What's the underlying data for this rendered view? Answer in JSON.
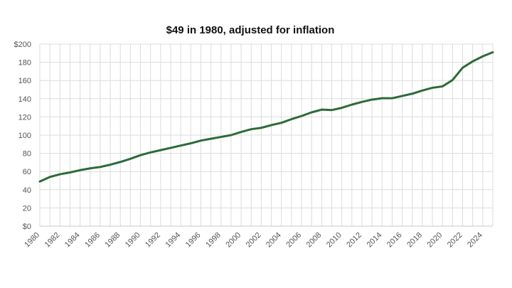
{
  "chart_data": {
    "type": "line",
    "title": "$49 in 1980, adjusted for inflation",
    "xlabel": "",
    "ylabel": "",
    "xlim": [
      1980,
      2025
    ],
    "ylim": [
      0,
      200
    ],
    "y_ticks": [
      0,
      20,
      40,
      60,
      80,
      100,
      120,
      140,
      160,
      180,
      200
    ],
    "y_tick_labels": [
      "$0",
      "20",
      "40",
      "60",
      "80",
      "100",
      "120",
      "140",
      "160",
      "180",
      "$200"
    ],
    "x_tick_labels": [
      "1980",
      "1982",
      "1984",
      "1986",
      "1988",
      "1990",
      "1992",
      "1994",
      "1996",
      "1998",
      "2000",
      "2002",
      "2004",
      "2006",
      "2008",
      "2010",
      "2012",
      "2014",
      "2016",
      "2018",
      "2020",
      "2022",
      "2024"
    ],
    "grid": true,
    "line_color": "#2d6a3a",
    "series": [
      {
        "x": [
          1980,
          1981,
          1982,
          1983,
          1984,
          1985,
          1986,
          1987,
          1988,
          1989,
          1990,
          1991,
          1992,
          1993,
          1994,
          1995,
          1996,
          1997,
          1998,
          1999,
          2000,
          2001,
          2002,
          2003,
          2004,
          2005,
          2006,
          2007,
          2008,
          2009,
          2010,
          2011,
          2012,
          2013,
          2014,
          2015,
          2016,
          2017,
          2018,
          2019,
          2020,
          2021,
          2022,
          2023,
          2024,
          2025
        ],
        "values": [
          49,
          54,
          57,
          59,
          61.5,
          63.5,
          65,
          67.5,
          70.5,
          74,
          78,
          81,
          83.5,
          86,
          88.5,
          91,
          94,
          96,
          98,
          100,
          103.5,
          106.5,
          108,
          111,
          113.5,
          117.5,
          121,
          125,
          128,
          127.5,
          130,
          133.5,
          136.5,
          139,
          140.5,
          140.5,
          143,
          145.5,
          149,
          152,
          153.5,
          160.5,
          174,
          181,
          186.5,
          191
        ]
      }
    ]
  }
}
